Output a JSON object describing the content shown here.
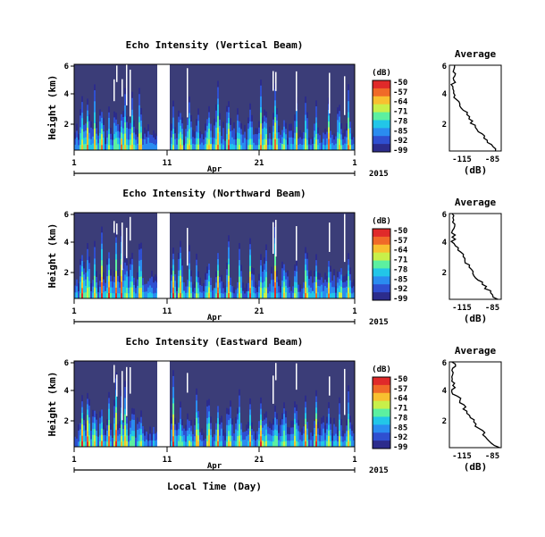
{
  "chart_data": [
    {
      "type": "heatmap",
      "title": "Echo Intensity (Vertical Beam)",
      "ylabel": "Height (km)",
      "yticks": [
        "6",
        "4",
        "2"
      ],
      "xticks": [
        "1",
        "11",
        "21",
        "1"
      ],
      "month": "Apr",
      "year": "2015",
      "xlabel": "",
      "colorbar": {
        "label": "(dB)",
        "ticks": [
          "-50",
          "-57",
          "-64",
          "-71",
          "-78",
          "-85",
          "-92",
          "-99"
        ]
      },
      "average": {
        "title": "Average",
        "xlabel": "(dB)",
        "xticks": [
          "-115",
          "-85"
        ],
        "yticks": [
          "6",
          "4",
          "2"
        ]
      }
    },
    {
      "type": "heatmap",
      "title": "Echo Intensity (Northward Beam)",
      "ylabel": "Height (km)",
      "yticks": [
        "6",
        "4",
        "2"
      ],
      "xticks": [
        "1",
        "11",
        "21",
        "1"
      ],
      "month": "Apr",
      "year": "2015",
      "xlabel": "",
      "colorbar": {
        "label": "(dB)",
        "ticks": [
          "-50",
          "-57",
          "-64",
          "-71",
          "-78",
          "-85",
          "-92",
          "-99"
        ]
      },
      "average": {
        "title": "Average",
        "xlabel": "(dB)",
        "xticks": [
          "-115",
          "-85"
        ],
        "yticks": [
          "6",
          "4",
          "2"
        ]
      }
    },
    {
      "type": "heatmap",
      "title": "Echo Intensity (Eastward Beam)",
      "ylabel": "Height (km)",
      "yticks": [
        "6",
        "4",
        "2"
      ],
      "xticks": [
        "1",
        "11",
        "21",
        "1"
      ],
      "month": "Apr",
      "year": "2015",
      "xlabel": "Local Time (Day)",
      "colorbar": {
        "label": "(dB)",
        "ticks": [
          "-50",
          "-57",
          "-64",
          "-71",
          "-78",
          "-85",
          "-92",
          "-99"
        ]
      },
      "average": {
        "title": "Average",
        "xlabel": "(dB)",
        "xticks": [
          "-115",
          "-85"
        ],
        "yticks": [
          "6",
          "4",
          "2"
        ]
      }
    }
  ],
  "colors": {
    "background": "#3b3d78",
    "colormap": [
      "#2c2c8c",
      "#2f4fd0",
      "#2a8cf0",
      "#22c6e8",
      "#5cf0a0",
      "#c8f04a",
      "#f8c030",
      "#f06a28",
      "#e02a2a"
    ]
  }
}
